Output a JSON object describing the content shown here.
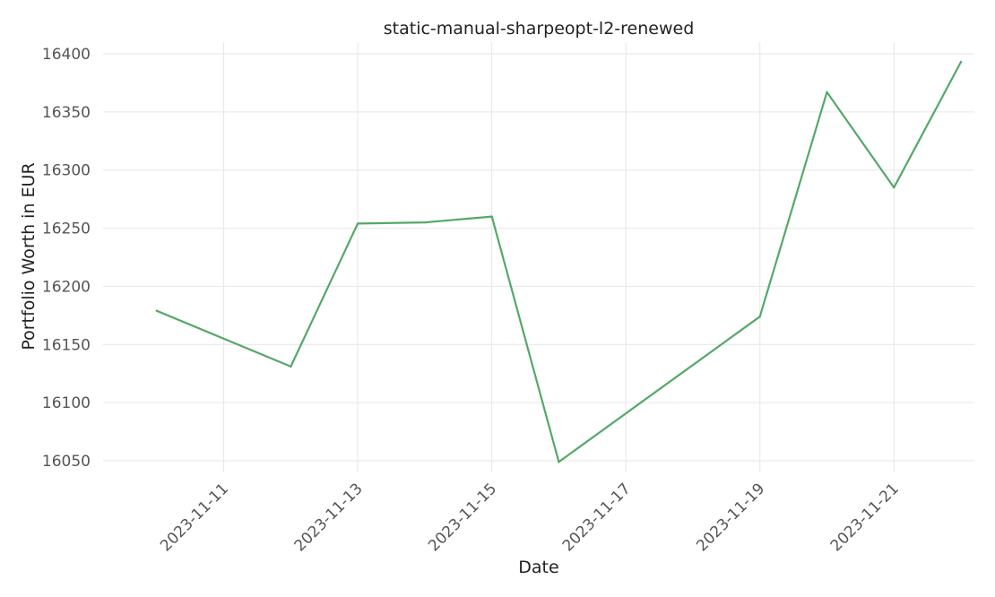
{
  "chart_data": {
    "type": "line",
    "title": "static-manual-sharpeopt-l2-renewed",
    "xlabel": "Date",
    "ylabel": "Portfolio Worth in EUR",
    "x": [
      "2023-11-10",
      "2023-11-12",
      "2023-11-13",
      "2023-11-14",
      "2023-11-15",
      "2023-11-16",
      "2023-11-19",
      "2023-11-20",
      "2023-11-21",
      "2023-11-22"
    ],
    "series": [
      {
        "values": [
          16179,
          16131,
          16254,
          16255,
          16260,
          16049,
          16174,
          16367,
          16285,
          16393
        ],
        "color": "#55a868"
      }
    ],
    "xticks": [
      "2023-11-11",
      "2023-11-13",
      "2023-11-15",
      "2023-11-17",
      "2023-11-19",
      "2023-11-21"
    ],
    "yticks": [
      16050,
      16100,
      16150,
      16200,
      16250,
      16300,
      16350,
      16400
    ],
    "xlim": [
      "2023-11-09",
      "2023-11-22"
    ],
    "ylim": [
      16040,
      16410
    ],
    "grid": true,
    "legend": "none"
  }
}
